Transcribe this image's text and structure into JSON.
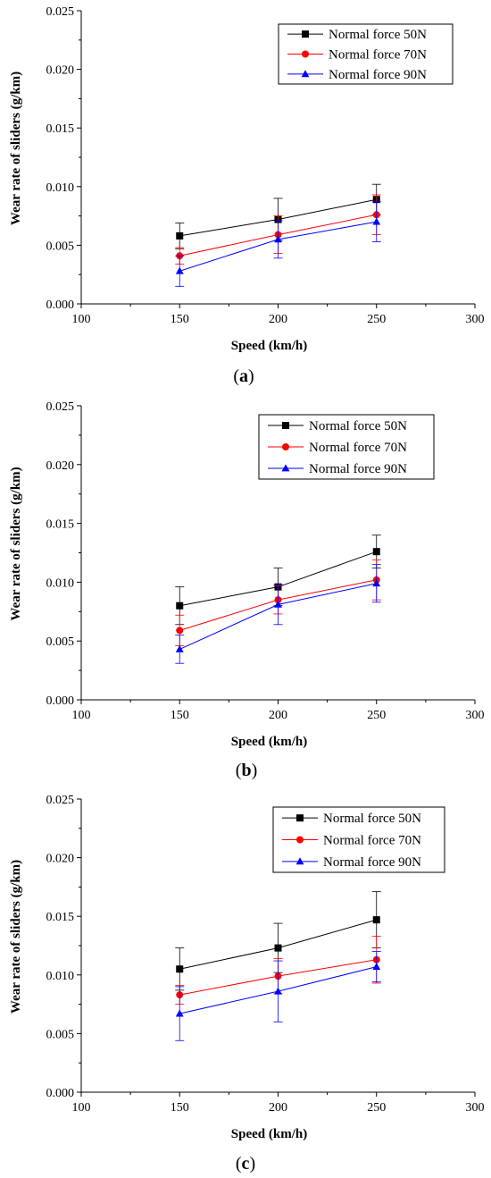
{
  "chart_data": [
    {
      "type": "line",
      "panel": "a",
      "xlabel": "Speed (km/h)",
      "ylabel": "Wear rate of sliders (g/km)",
      "xlim": [
        100,
        300
      ],
      "ylim": [
        0.0,
        0.025
      ],
      "xticks": [
        "100",
        "150",
        "200",
        "250",
        "300"
      ],
      "yticks": [
        "0.000",
        "0.005",
        "0.010",
        "0.015",
        "0.020",
        "0.025"
      ],
      "x": [
        150,
        200,
        250
      ],
      "legend_position": "top-right",
      "grid": false,
      "series": [
        {
          "name": "Normal force 50N",
          "values": [
            0.0058,
            0.0072,
            0.0089
          ],
          "errors": [
            0.0011,
            0.0018,
            0.0013
          ],
          "color": "#000000",
          "marker": "square"
        },
        {
          "name": "Normal force 70N",
          "values": [
            0.0041,
            0.0059,
            0.0076
          ],
          "errors": [
            0.0007,
            0.0016,
            0.0017
          ],
          "color": "#ff0000",
          "marker": "circle"
        },
        {
          "name": "Normal force 90N",
          "values": [
            0.0028,
            0.0055,
            0.007
          ],
          "errors": [
            0.0013,
            0.0016,
            0.0017
          ],
          "color": "#0000ff",
          "marker": "triangle"
        }
      ]
    },
    {
      "type": "line",
      "panel": "b",
      "xlabel": "Speed (km/h)",
      "ylabel": "Wear rate of sliders (g/km)",
      "xlim": [
        100,
        300
      ],
      "ylim": [
        0.0,
        0.025
      ],
      "xticks": [
        "100",
        "150",
        "200",
        "250",
        "300"
      ],
      "yticks": [
        "0.000",
        "0.005",
        "0.010",
        "0.015",
        "0.020",
        "0.025"
      ],
      "x": [
        150,
        200,
        250
      ],
      "legend_position": "top-right",
      "grid": false,
      "series": [
        {
          "name": "Normal force 50N",
          "values": [
            0.008,
            0.0096,
            0.0126
          ],
          "errors": [
            0.0016,
            0.0016,
            0.0014
          ],
          "color": "#000000",
          "marker": "square"
        },
        {
          "name": "Normal force 70N",
          "values": [
            0.0059,
            0.0085,
            0.0102
          ],
          "errors": [
            0.0013,
            0.0012,
            0.0017
          ],
          "color": "#ff0000",
          "marker": "circle"
        },
        {
          "name": "Normal force 90N",
          "values": [
            0.0043,
            0.0081,
            0.0099
          ],
          "errors": [
            0.0012,
            0.0017,
            0.0016
          ],
          "color": "#0000ff",
          "marker": "triangle"
        }
      ]
    },
    {
      "type": "line",
      "panel": "c",
      "xlabel": "Speed (km/h)",
      "ylabel": "Wear rate of sliders (g/km)",
      "xlim": [
        100,
        300
      ],
      "ylim": [
        0.0,
        0.025
      ],
      "xticks": [
        "100",
        "150",
        "200",
        "250",
        "300"
      ],
      "yticks": [
        "0.000",
        "0.005",
        "0.010",
        "0.015",
        "0.020",
        "0.025"
      ],
      "x": [
        150,
        200,
        250
      ],
      "legend_position": "top-right",
      "grid": false,
      "series": [
        {
          "name": "Normal force 50N",
          "values": [
            0.0105,
            0.0123,
            0.0147
          ],
          "errors": [
            0.0018,
            0.0021,
            0.0024
          ],
          "color": "#000000",
          "marker": "square"
        },
        {
          "name": "Normal force 70N",
          "values": [
            0.0083,
            0.0099,
            0.0113
          ],
          "errors": [
            0.0008,
            0.0015,
            0.002
          ],
          "color": "#ff0000",
          "marker": "circle"
        },
        {
          "name": "Normal force 90N",
          "values": [
            0.0067,
            0.0086,
            0.0107
          ],
          "errors": [
            0.0023,
            0.0026,
            0.0013
          ],
          "color": "#0000ff",
          "marker": "triangle"
        }
      ]
    }
  ],
  "captions": [
    "(a)",
    "(b)",
    "(c)"
  ]
}
